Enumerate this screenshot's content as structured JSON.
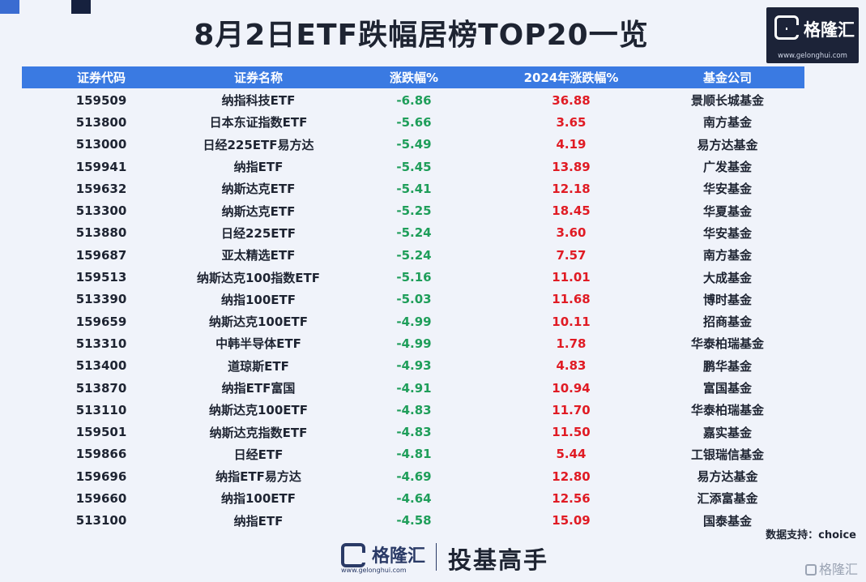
{
  "title": "8月2日ETF跌幅居榜TOP20一览",
  "logo": {
    "name": "格隆汇",
    "url": "www.gelonghui.com"
  },
  "columns": [
    "证券代码",
    "证券名称",
    "涨跌幅%",
    "2024年涨跌幅%",
    "基金公司"
  ],
  "rows": [
    [
      "159509",
      "纳指科技ETF",
      "-6.86",
      "36.88",
      "景顺长城基金"
    ],
    [
      "513800",
      "日本东证指数ETF",
      "-5.66",
      "3.65",
      "南方基金"
    ],
    [
      "513000",
      "日经225ETF易方达",
      "-5.49",
      "4.19",
      "易方达基金"
    ],
    [
      "159941",
      "纳指ETF",
      "-5.45",
      "13.89",
      "广发基金"
    ],
    [
      "159632",
      "纳斯达克ETF",
      "-5.41",
      "12.18",
      "华安基金"
    ],
    [
      "513300",
      "纳斯达克ETF",
      "-5.25",
      "18.45",
      "华夏基金"
    ],
    [
      "513880",
      "日经225ETF",
      "-5.24",
      "3.60",
      "华安基金"
    ],
    [
      "159687",
      "亚太精选ETF",
      "-5.24",
      "7.57",
      "南方基金"
    ],
    [
      "159513",
      "纳斯达克100指数ETF",
      "-5.16",
      "11.01",
      "大成基金"
    ],
    [
      "513390",
      "纳指100ETF",
      "-5.03",
      "11.68",
      "博时基金"
    ],
    [
      "159659",
      "纳斯达克100ETF",
      "-4.99",
      "10.11",
      "招商基金"
    ],
    [
      "513310",
      "中韩半导体ETF",
      "-4.99",
      "1.78",
      "华泰柏瑞基金"
    ],
    [
      "513400",
      "道琼斯ETF",
      "-4.93",
      "4.83",
      "鹏华基金"
    ],
    [
      "513870",
      "纳指ETF富国",
      "-4.91",
      "10.94",
      "富国基金"
    ],
    [
      "513110",
      "纳斯达克100ETF",
      "-4.83",
      "11.70",
      "华泰柏瑞基金"
    ],
    [
      "159501",
      "纳斯达克指数ETF",
      "-4.83",
      "11.50",
      "嘉实基金"
    ],
    [
      "159866",
      "日经ETF",
      "-4.81",
      "5.44",
      "工银瑞信基金"
    ],
    [
      "159696",
      "纳指ETF易方达",
      "-4.69",
      "12.80",
      "易方达基金"
    ],
    [
      "159660",
      "纳指100ETF",
      "-4.64",
      "12.56",
      "汇添富基金"
    ],
    [
      "513100",
      "纳指ETF",
      "-4.58",
      "15.09",
      "国泰基金"
    ]
  ],
  "source": "数据支持：choice",
  "footer": {
    "logo_name": "格隆汇",
    "logo_url": "www.gelonghui.com",
    "slogan": "投基高手"
  },
  "watermark": "格隆汇",
  "colors": {
    "header": "#3a7ae2",
    "negative": "#1f9e5a",
    "positive": "#e01b24",
    "logo_bg": "#1c2338"
  }
}
